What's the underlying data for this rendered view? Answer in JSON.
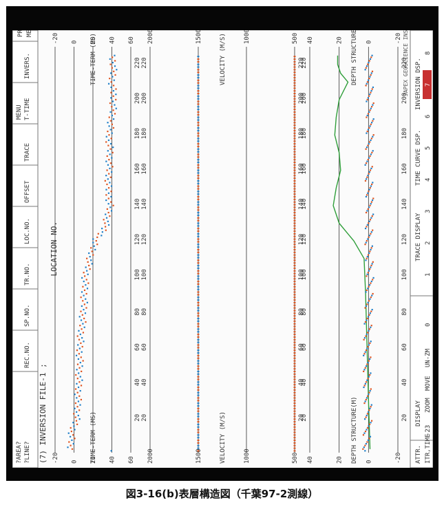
{
  "caption": "図3-16(b)表層構造図（千葉97-2測線）",
  "window": {
    "title": "(7) INVERSION FILE-1 ;",
    "area_label": "?AREA?",
    "line_label": "?LINE?",
    "xlabel": "LOCATION NO."
  },
  "menu_bar": {
    "items": [
      "REC.NO.",
      "SP.NO.",
      "TR.NO.",
      "LOC.NO.",
      "OFFSET",
      "TRACE",
      "T-TIME",
      "INVERS."
    ],
    "menu_label": "MENU",
    "prim_menu": [
      "PRIM.",
      "MENU"
    ]
  },
  "bottom_bar": {
    "attr": "ATTR.",
    "itr_time_label": "ITR,TIME",
    "itr_time_value": "-23",
    "display_label": "DISPLAY",
    "zoom": "ZOOM",
    "move": "MOVE",
    "un_zm": "UN-ZM",
    "move_value": "0",
    "trace_display": "TRACE DISPLAY",
    "time_curve_display": "TIME CURVE DSP.",
    "inversion_display": "INVERSION DSP.",
    "numbers": [
      "1",
      "2",
      "3",
      "4",
      "5",
      "6",
      "7",
      "8"
    ],
    "institute": "JAPEX GEOSCIENCE INSTITUTE,INC.",
    "selected_color": "#c83030"
  },
  "panels": [
    {
      "id": "time-term",
      "label": "TIME-TERM (MS)",
      "ticks": [
        "-20",
        "0",
        "20",
        "40",
        "60"
      ],
      "range": [
        -20,
        60
      ]
    },
    {
      "id": "velocity",
      "label": "VELOCITY (M/S)",
      "ticks": [
        "2000",
        "1500",
        "1000",
        "500"
      ],
      "range": [
        2000,
        500
      ]
    },
    {
      "id": "depth",
      "label": "DEPTH STRUCTURE(M)",
      "ticks": [
        "40",
        "20",
        "0",
        "-20"
      ],
      "range": [
        40,
        -20
      ]
    }
  ],
  "location_ticks": [
    "20",
    "40",
    "60",
    "80",
    "100",
    "120",
    "140",
    "160",
    "180",
    "200",
    "220"
  ],
  "chart_data": [
    {
      "type": "scatter",
      "panel": "time-term",
      "xlabel": "LOCATION NO.",
      "ylabel": "TIME-TERM (MS)",
      "xlim": [
        0,
        230
      ],
      "ylim": [
        -20,
        60
      ],
      "series_colors": [
        "#e0541f",
        "#1f7fc8"
      ],
      "points": [
        [
          2,
          -4
        ],
        [
          12,
          -2
        ],
        [
          20,
          3
        ],
        [
          30,
          4
        ],
        [
          40,
          5
        ],
        [
          50,
          6
        ],
        [
          60,
          6
        ],
        [
          70,
          8
        ],
        [
          80,
          10
        ],
        [
          90,
          11
        ],
        [
          100,
          12
        ],
        [
          110,
          17
        ],
        [
          120,
          22
        ],
        [
          125,
          30
        ],
        [
          130,
          34
        ],
        [
          140,
          38
        ],
        [
          150,
          36
        ],
        [
          160,
          37
        ],
        [
          170,
          38
        ],
        [
          180,
          37
        ],
        [
          190,
          40
        ],
        [
          200,
          42
        ],
        [
          210,
          40
        ],
        [
          220,
          42
        ],
        [
          225,
          40
        ]
      ]
    },
    {
      "type": "scatter",
      "panel": "velocity",
      "ylabel": "VELOCITY (M/S)",
      "xlim": [
        0,
        230
      ],
      "ylim": [
        2000,
        500
      ],
      "series": [
        {
          "values_const": 1500,
          "colors": [
            "#1f7fc8",
            "#e0541f"
          ]
        },
        {
          "values_const": 500,
          "colors": [
            "#e0541f"
          ]
        }
      ]
    },
    {
      "type": "line",
      "panel": "depth",
      "ylabel": "DEPTH STRUCTURE(M)",
      "xlim": [
        0,
        230
      ],
      "ylim": [
        40,
        -20
      ],
      "surface": [
        [
          2,
          -1
        ],
        [
          30,
          0
        ],
        [
          60,
          1
        ],
        [
          90,
          2
        ],
        [
          110,
          3
        ],
        [
          120,
          10
        ],
        [
          125,
          15
        ],
        [
          130,
          20
        ],
        [
          140,
          24
        ],
        [
          150,
          22
        ],
        [
          160,
          19
        ],
        [
          170,
          20
        ],
        [
          180,
          23
        ],
        [
          190,
          22
        ],
        [
          200,
          20
        ],
        [
          205,
          17
        ],
        [
          210,
          14
        ],
        [
          215,
          19
        ],
        [
          220,
          21
        ],
        [
          225,
          21
        ]
      ],
      "points": [
        [
          2,
          2
        ],
        [
          20,
          0
        ],
        [
          40,
          1
        ],
        [
          60,
          1
        ],
        [
          80,
          0
        ],
        [
          100,
          -1
        ],
        [
          120,
          0
        ],
        [
          140,
          -1
        ],
        [
          160,
          0
        ],
        [
          180,
          -1
        ],
        [
          200,
          -1
        ],
        [
          220,
          0
        ]
      ]
    }
  ]
}
